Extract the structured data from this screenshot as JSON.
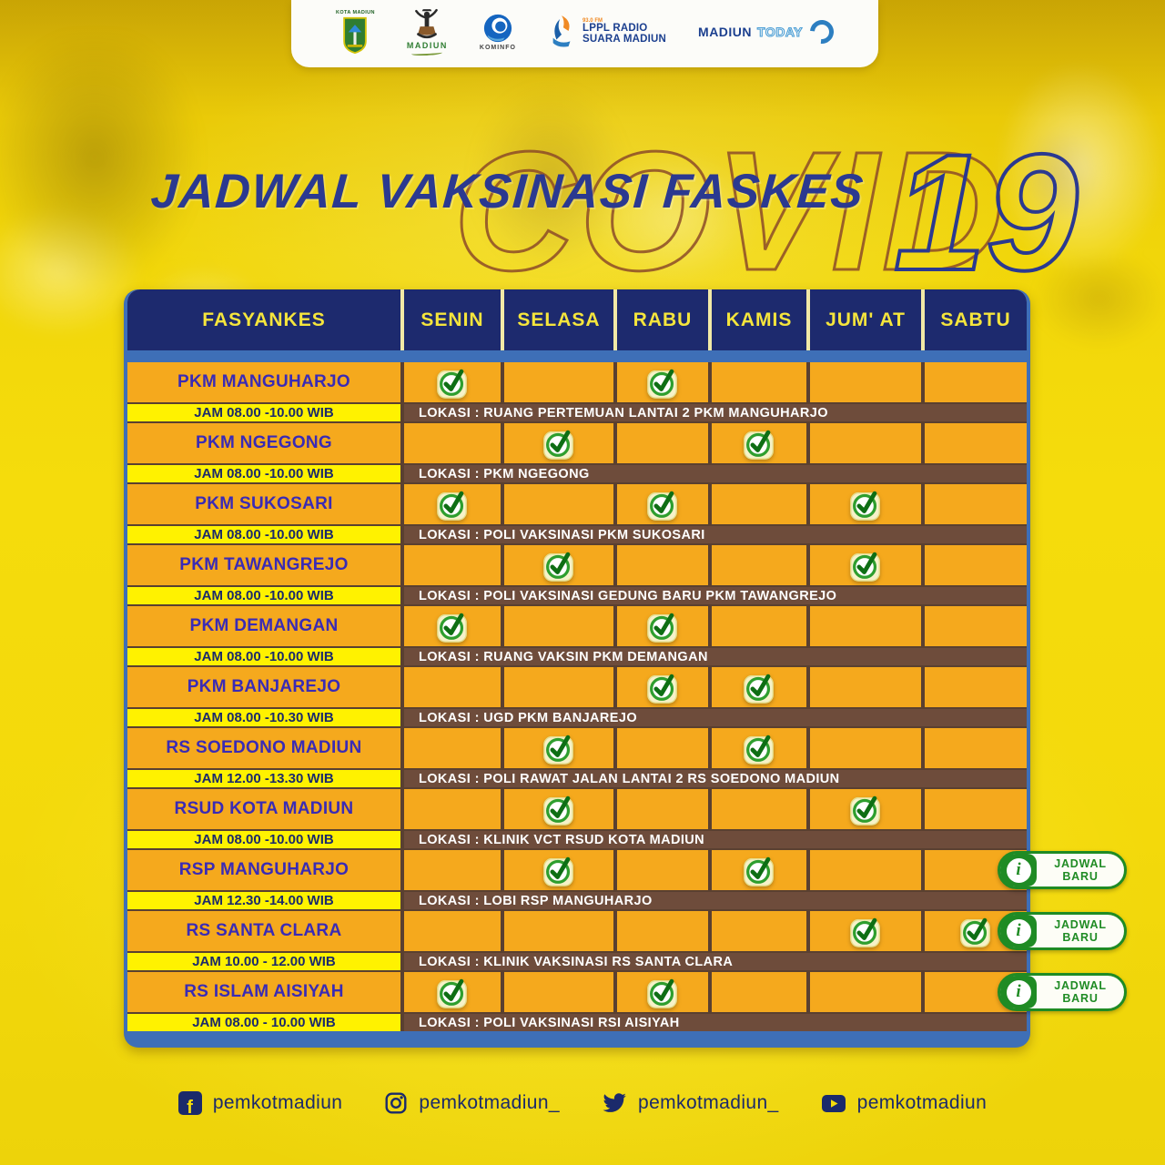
{
  "banner": {
    "logos": {
      "city_seal": {
        "label": "KOTA MADIUN"
      },
      "dancer": {
        "label": "MADIUN"
      },
      "kominfo": {
        "label": "KOMINFO"
      },
      "radio": {
        "fm": "93.0 FM",
        "line1": "LPPL RADIO",
        "line2": "SUARA MADIUN"
      },
      "madiun_today": {
        "word1": "MADIUN",
        "word2": "TODAY"
      }
    }
  },
  "title": {
    "main": "JADWAL VAKSINASI FASKES",
    "bg_word": "COVID",
    "bg_number": "19"
  },
  "table": {
    "columns": [
      "FASYANKES",
      "SENIN",
      "SELASA",
      "RABU",
      "KAMIS",
      "JUM' AT",
      "SABTU"
    ],
    "rows": [
      {
        "name": "PKM MANGUHARJO",
        "time": "JAM 08.00 -10.00 WIB",
        "location": "LOKASI : RUANG PERTEMUAN LANTAI 2 PKM MANGUHARJO",
        "days": [
          1,
          0,
          1,
          0,
          0,
          0
        ],
        "new_schedule": false
      },
      {
        "name": "PKM NGEGONG",
        "time": "JAM 08.00 -10.00 WIB",
        "location": "LOKASI : PKM NGEGONG",
        "days": [
          0,
          1,
          0,
          1,
          0,
          0
        ],
        "new_schedule": false
      },
      {
        "name": "PKM SUKOSARI",
        "time": "JAM 08.00 -10.00 WIB",
        "location": "LOKASI : POLI VAKSINASI PKM SUKOSARI",
        "days": [
          1,
          0,
          1,
          0,
          1,
          0
        ],
        "new_schedule": false
      },
      {
        "name": "PKM TAWANGREJO",
        "time": "JAM 08.00 -10.00 WIB",
        "location": "LOKASI : POLI VAKSINASI GEDUNG BARU PKM TAWANGREJO",
        "days": [
          0,
          1,
          0,
          0,
          1,
          0
        ],
        "new_schedule": false
      },
      {
        "name": "PKM DEMANGAN",
        "time": "JAM 08.00 -10.00 WIB",
        "location": "LOKASI : RUANG VAKSIN PKM DEMANGAN",
        "days": [
          1,
          0,
          1,
          0,
          0,
          0
        ],
        "new_schedule": false
      },
      {
        "name": "PKM BANJAREJO",
        "time": "JAM 08.00 -10.30 WIB",
        "location": "LOKASI : UGD PKM BANJAREJO",
        "days": [
          0,
          0,
          1,
          1,
          0,
          0
        ],
        "new_schedule": false
      },
      {
        "name": "RS SOEDONO MADIUN",
        "time": "JAM 12.00 -13.30 WIB",
        "location": "LOKASI : POLI RAWAT JALAN LANTAI 2 RS SOEDONO MADIUN",
        "days": [
          0,
          1,
          0,
          1,
          0,
          0
        ],
        "new_schedule": false
      },
      {
        "name": "RSUD KOTA MADIUN",
        "time": "JAM 08.00 -10.00 WIB",
        "location": "LOKASI : KLINIK VCT RSUD KOTA MADIUN",
        "days": [
          0,
          1,
          0,
          0,
          1,
          0
        ],
        "new_schedule": false
      },
      {
        "name": "RSP MANGUHARJO",
        "time": "JAM 12.30 -14.00 WIB",
        "location": "LOKASI : LOBI RSP MANGUHARJO",
        "days": [
          0,
          1,
          0,
          1,
          0,
          0
        ],
        "new_schedule": true
      },
      {
        "name": "RS SANTA CLARA",
        "time": "JAM 10.00 - 12.00 WIB",
        "location": "LOKASI : KLINIK VAKSINASI RS SANTA CLARA",
        "days": [
          0,
          0,
          0,
          0,
          1,
          1
        ],
        "new_schedule": true
      },
      {
        "name": "RS ISLAM AISIYAH",
        "time": "JAM 08.00 - 10.00 WIB",
        "location": "LOKASI : POLI VAKSINASI RSI AISIYAH",
        "days": [
          1,
          0,
          1,
          0,
          0,
          0
        ],
        "new_schedule": true
      }
    ]
  },
  "badge": {
    "line1": "JADWAL",
    "line2": "BARU"
  },
  "footer": {
    "socials": [
      {
        "network": "facebook",
        "handle": "pemkotmadiun"
      },
      {
        "network": "instagram",
        "handle": "pemkotmadiun_"
      },
      {
        "network": "twitter",
        "handle": "pemkotmadiun_"
      },
      {
        "network": "youtube",
        "handle": "pemkotmadiun"
      }
    ]
  },
  "colors": {
    "background_yellow": "#F3D90B",
    "header_navy": "#1D2A6E",
    "header_label_yellow": "#F5E53C",
    "royal_blue_backing": "#3E6FB7",
    "cell_orange": "#F5A91D",
    "cell_bright_yellow": "#FFF200",
    "location_brown": "#6E4C3B",
    "border_brown": "#5A4030",
    "facility_text_blue": "#3A2BB5",
    "title_blue": "#2B3990",
    "covid_outline_brown": "#8C4B28",
    "check_green": "#2E9E2E",
    "badge_green": "#1F8B24"
  }
}
